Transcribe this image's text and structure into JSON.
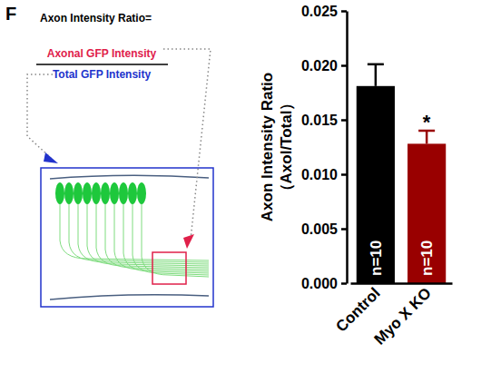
{
  "chart_data": {
    "type": "bar",
    "categories": [
      "Control",
      "Myo X KO"
    ],
    "values": [
      0.0181,
      0.0128
    ],
    "errors": [
      0.002,
      0.0012
    ],
    "colors": [
      "#000000",
      "#990000"
    ],
    "ylabel": [
      "Axon Intensity Ratio",
      "（Axol/Total）"
    ],
    "ylim": [
      0,
      0.025
    ],
    "yticks": [
      {
        "value": 0,
        "label": "0.000"
      },
      {
        "value": 0.005,
        "label": "0.005"
      },
      {
        "value": 0.01,
        "label": "0.010"
      },
      {
        "value": 0.015,
        "label": "0.015"
      },
      {
        "value": 0.02,
        "label": "0.020"
      },
      {
        "value": 0.025,
        "label": "0.025"
      }
    ],
    "grid": false,
    "annotations": [
      {
        "text": "n=10",
        "category": 0,
        "position": "inside"
      },
      {
        "text": "n=10",
        "category": 1,
        "position": "inside"
      },
      {
        "text": "*",
        "category": 1,
        "position": "above"
      }
    ]
  },
  "diagram": {
    "panel_label": "F",
    "formula_title": "Axon Intensity Ratio=",
    "numerator": "Axonal GFP Intensity",
    "denominator": "Total GFP Intensity"
  }
}
